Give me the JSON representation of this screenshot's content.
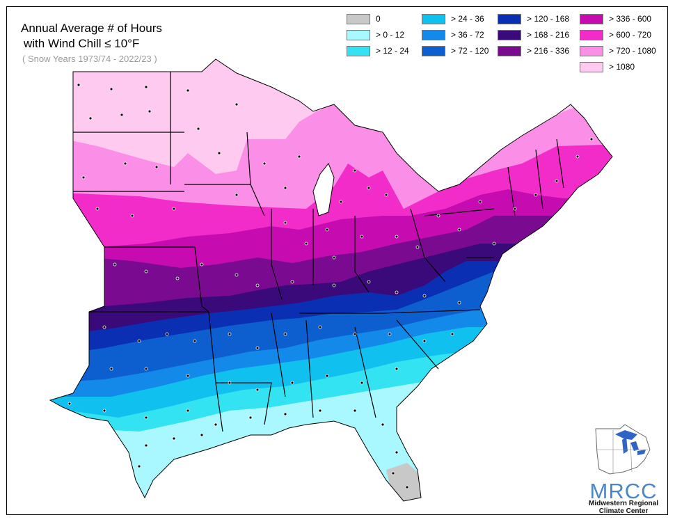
{
  "map": {
    "title_line1": "Annual Average # of Hours",
    "title_line2": "with Wind Chill ≤ 10°F",
    "subtitle": "( Snow Years 1973/74 - 2022/23 )"
  },
  "legend": [
    {
      "label": "0",
      "color": "#c8c8c8"
    },
    {
      "label": "> 0 - 12",
      "color": "#aaf8ff"
    },
    {
      "label": "> 12 - 24",
      "color": "#33e3f2"
    },
    {
      "label": "> 24 - 36",
      "color": "#10c1ef"
    },
    {
      "label": "> 36 - 72",
      "color": "#1389ea"
    },
    {
      "label": "> 72 - 120",
      "color": "#0d5fd0"
    },
    {
      "label": "> 120 - 168",
      "color": "#0a2fb3"
    },
    {
      "label": "> 168 - 216",
      "color": "#3a0a7a"
    },
    {
      "label": "> 216 - 336",
      "color": "#7a0a90"
    },
    {
      "label": "> 336 - 600",
      "color": "#c60cb0"
    },
    {
      "label": "> 600 - 720",
      "color": "#f22cc8"
    },
    {
      "label": "> 720 - 1080",
      "color": "#fb8ee6"
    },
    {
      "label": "> 1080",
      "color": "#ffcaf0"
    }
  ],
  "logo": {
    "acronym": "MRCC",
    "line1": "Midwestern Regional",
    "line2": "Climate Center"
  }
}
